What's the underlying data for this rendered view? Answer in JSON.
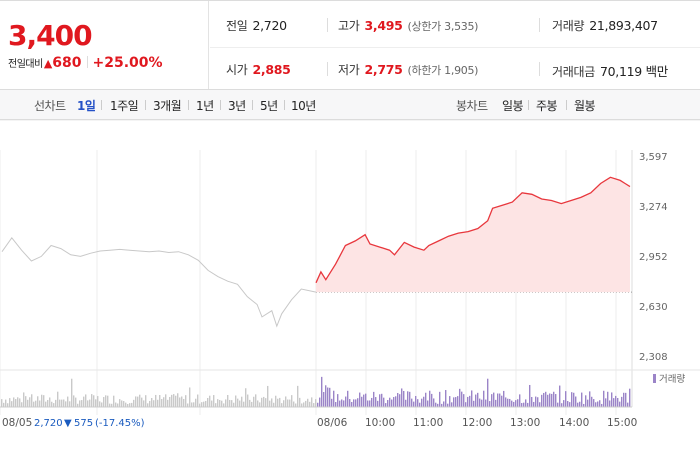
{
  "quote": {
    "price": "3,400",
    "change_label": "전일대비",
    "change_value": "680",
    "change_pct": "+25.00%"
  },
  "stats": {
    "prev_close": {
      "label": "전일",
      "value": "2,720"
    },
    "high": {
      "label": "고가",
      "value": "3,495",
      "sub": "(상한가 3,535)"
    },
    "volume": {
      "label": "거래량",
      "value": "21,893,407"
    },
    "open": {
      "label": "시가",
      "value": "2,885"
    },
    "low": {
      "label": "저가",
      "value": "2,775",
      "sub": "(하한가 1,905)"
    },
    "trade_value": {
      "label": "거래대금",
      "value": "70,119 백만"
    }
  },
  "tabs": {
    "line_chart_label": "선차트",
    "line_periods": [
      "1일",
      "1주일",
      "3개월",
      "1년",
      "3년",
      "5년",
      "10년"
    ],
    "active_period": "1일",
    "candle_chart_label": "봉차트",
    "candle_periods": [
      "일봉",
      "주봉",
      "월봉"
    ]
  },
  "chart_data": {
    "type": "line",
    "y_ticks": [
      "3,597",
      "3,274",
      "2,952",
      "2,630",
      "2,308"
    ],
    "y_range": [
      2308,
      3597
    ],
    "reference_price": 2720,
    "volume_legend": "거래량",
    "x_labels": [
      "08/05",
      "08/06",
      "10:00",
      "11:00",
      "12:00",
      "13:00",
      "14:00",
      "15:00"
    ],
    "prev_day_footer": {
      "date": "08/05",
      "close": "2,720",
      "change": "575",
      "change_pct": "(-17.45%)"
    },
    "prev_day_series": [
      [
        0,
        2980
      ],
      [
        2,
        3070
      ],
      [
        4,
        2990
      ],
      [
        6,
        2920
      ],
      [
        8,
        2950
      ],
      [
        10,
        3020
      ],
      [
        12,
        3000
      ],
      [
        14,
        2960
      ],
      [
        16,
        2950
      ],
      [
        18,
        2970
      ],
      [
        20,
        2985
      ],
      [
        22,
        2990
      ],
      [
        24,
        2995
      ],
      [
        26,
        2990
      ],
      [
        28,
        2985
      ],
      [
        30,
        2980
      ],
      [
        32,
        2985
      ],
      [
        34,
        2975
      ],
      [
        36,
        2980
      ],
      [
        38,
        2960
      ],
      [
        40,
        2925
      ],
      [
        42,
        2860
      ],
      [
        44,
        2820
      ],
      [
        46,
        2790
      ],
      [
        48,
        2770
      ],
      [
        50,
        2690
      ],
      [
        52,
        2640
      ],
      [
        53,
        2560
      ],
      [
        55,
        2600
      ],
      [
        56,
        2500
      ],
      [
        57,
        2580
      ],
      [
        59,
        2670
      ],
      [
        61,
        2740
      ],
      [
        64,
        2720
      ]
    ],
    "today_series": [
      [
        64,
        2780
      ],
      [
        65,
        2850
      ],
      [
        66,
        2800
      ],
      [
        68,
        2900
      ],
      [
        70,
        3020
      ],
      [
        72,
        3050
      ],
      [
        74,
        3090
      ],
      [
        75,
        3030
      ],
      [
        77,
        3010
      ],
      [
        79,
        2990
      ],
      [
        80,
        2960
      ],
      [
        82,
        3040
      ],
      [
        84,
        3010
      ],
      [
        86,
        2990
      ],
      [
        87,
        3020
      ],
      [
        89,
        3050
      ],
      [
        91,
        3080
      ],
      [
        93,
        3100
      ],
      [
        95,
        3110
      ],
      [
        97,
        3130
      ],
      [
        99,
        3180
      ],
      [
        100,
        3260
      ],
      [
        102,
        3280
      ],
      [
        104,
        3300
      ],
      [
        106,
        3360
      ],
      [
        108,
        3350
      ],
      [
        110,
        3320
      ],
      [
        112,
        3310
      ],
      [
        114,
        3290
      ],
      [
        116,
        3310
      ],
      [
        118,
        3330
      ],
      [
        120,
        3360
      ],
      [
        122,
        3420
      ],
      [
        124,
        3460
      ],
      [
        126,
        3440
      ],
      [
        127,
        3420
      ],
      [
        128,
        3400
      ]
    ],
    "x_domain": [
      0,
      128
    ]
  }
}
